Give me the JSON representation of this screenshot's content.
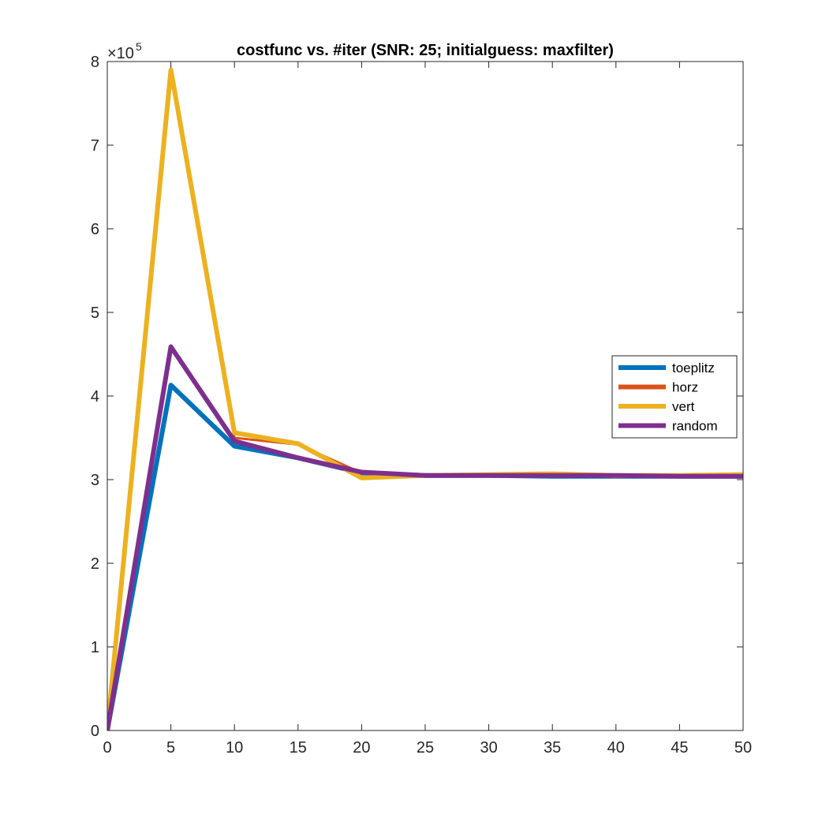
{
  "chart_data": {
    "type": "line",
    "title": "costfunc vs. #iter (SNR: 25; initialguess: maxfilter)",
    "xlabel": "",
    "ylabel": "",
    "xlim": [
      0,
      50
    ],
    "ylim": [
      0,
      8
    ],
    "y_exponent_label": "×10",
    "y_exponent_power": "5",
    "xticks": [
      0,
      5,
      10,
      15,
      20,
      25,
      30,
      35,
      40,
      45,
      50
    ],
    "yticks": [
      0,
      1,
      2,
      3,
      4,
      5,
      6,
      7,
      8
    ],
    "grid": false,
    "legend_position": "right",
    "series": [
      {
        "name": "toeplitz",
        "color": "#0072BD",
        "x": [
          0,
          5,
          10,
          15,
          20,
          25,
          30,
          35,
          40,
          45,
          50
        ],
        "y": [
          0,
          4.13,
          3.4,
          3.26,
          3.08,
          3.05,
          3.05,
          3.04,
          3.04,
          3.04,
          3.04
        ]
      },
      {
        "name": "horz",
        "color": "#D95319",
        "x": [
          0,
          5,
          10,
          15,
          20,
          25,
          30,
          35,
          40,
          45,
          50
        ],
        "y": [
          0,
          7.9,
          3.5,
          3.42,
          3.08,
          3.05,
          3.06,
          3.06,
          3.03,
          3.04,
          3.06
        ]
      },
      {
        "name": "vert",
        "color": "#EDB120",
        "x": [
          0,
          5,
          10,
          15,
          20,
          25,
          30,
          35,
          40,
          45,
          50
        ],
        "y": [
          0,
          7.9,
          3.56,
          3.43,
          3.02,
          3.05,
          3.06,
          3.07,
          3.05,
          3.05,
          3.06
        ]
      },
      {
        "name": "random",
        "color": "#7E2F8E",
        "x": [
          0,
          5,
          10,
          15,
          20,
          25,
          30,
          35,
          40,
          45,
          50
        ],
        "y": [
          0,
          4.59,
          3.46,
          3.26,
          3.09,
          3.05,
          3.05,
          3.05,
          3.05,
          3.04,
          3.04
        ]
      }
    ]
  }
}
